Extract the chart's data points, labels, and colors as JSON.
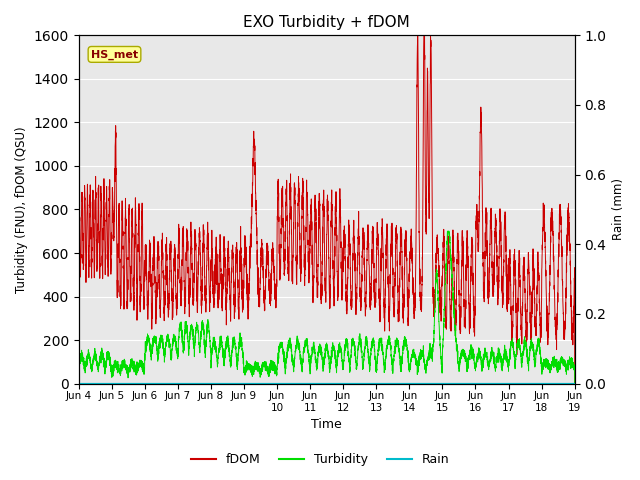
{
  "title": "EXO Turbidity + fDOM",
  "ylabel_left": "Turbidity (FNU), fDOM (QSU)",
  "ylabel_right": "Rain (mm)",
  "xlabel": "Time",
  "ylim_left": [
    0,
    1600
  ],
  "ylim_right": [
    0,
    1.0
  ],
  "yticks_left": [
    0,
    200,
    400,
    600,
    800,
    1000,
    1200,
    1400,
    1600
  ],
  "yticks_right": [
    0.0,
    0.2,
    0.4,
    0.6,
    0.8,
    1.0
  ],
  "xtick_positions": [
    4,
    5,
    6,
    7,
    8,
    9,
    10,
    11,
    12,
    13,
    14,
    15,
    16,
    17,
    18,
    19
  ],
  "xtick_labels": [
    "Jun 4",
    "Jun 5",
    "Jun 6",
    "Jun 7",
    "Jun 8",
    "Jun 9",
    "Jun\n10",
    "Jun\n11",
    "Jun\n12",
    "Jun\n13",
    "Jun\n14",
    "Jun\n15",
    "Jun\n16",
    "Jun\n17",
    "Jun\n18",
    "Jun\n19"
  ],
  "fdom_color": "#cc0000",
  "turbidity_color": "#00dd00",
  "rain_color": "#00bbcc",
  "background_color": "#e8e8e8",
  "annotation_text": "HS_met",
  "annotation_box_facecolor": "#ffff99",
  "annotation_box_edgecolor": "#aaaa00",
  "annotation_text_color": "#880000",
  "legend_labels": [
    "fDOM",
    "Turbidity",
    "Rain"
  ],
  "figsize": [
    6.4,
    4.8
  ],
  "dpi": 100,
  "xlim": [
    4,
    19
  ]
}
